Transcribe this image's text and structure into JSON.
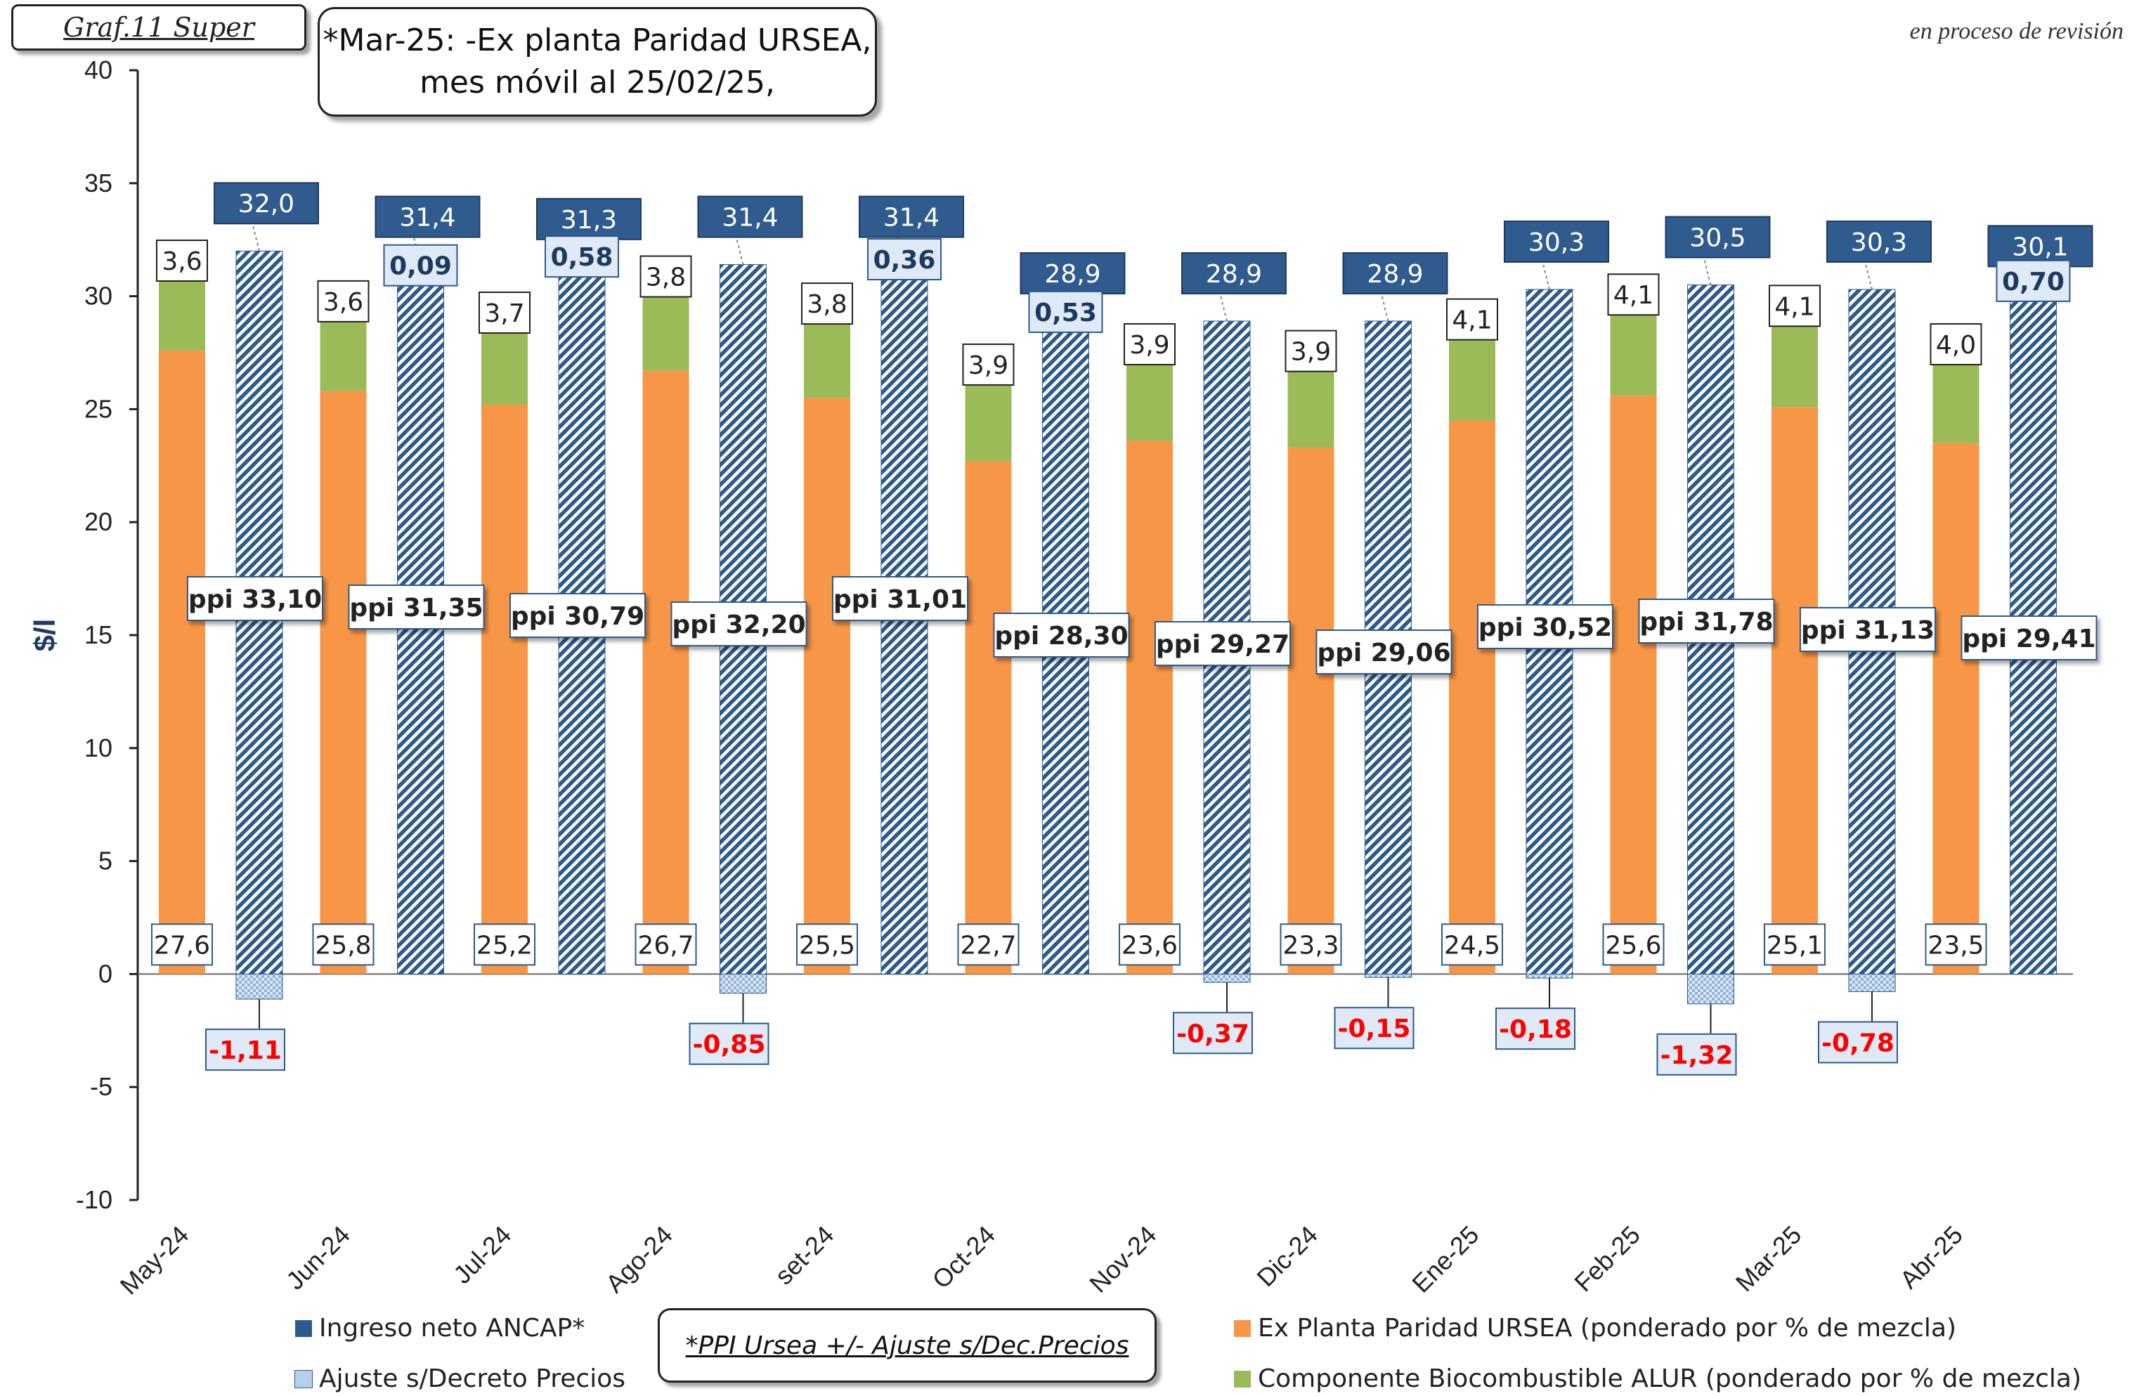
{
  "header": {
    "graf_label": "Graf.11  Super",
    "note_line1": "*Mar-25: -Ex planta Paridad URSEA,",
    "note_line2": "mes móvil al 25/02/25,",
    "revision": "en proceso de revisión"
  },
  "ppi_note": "*PPI Ursea +/- Ajuste s/Dec.Precios",
  "colors": {
    "ingreso": "#2e5a8e",
    "ingreso_label_bg": "#2f5b8f",
    "ex_planta": "#f79646",
    "alur": "#9bbb59",
    "ajuste": "#b7d0ea",
    "negative_text": "#ff0000",
    "axis": "#222222"
  },
  "legend": {
    "ingreso": "Ingreso neto ANCAP*",
    "ajuste": "Ajuste s/Decreto Precios",
    "ex_planta": "Ex Planta Paridad URSEA (ponderado por % de mezcla)",
    "alur": "Componente Biocombustible ALUR (ponderado por % de mezcla)"
  },
  "chart_data": {
    "type": "bar",
    "ylabel": "$/l",
    "ylim": [
      -10,
      40
    ],
    "yticks": [
      "-10",
      "-5",
      "0",
      "5",
      "10",
      "15",
      "20",
      "25",
      "30",
      "35",
      "40"
    ],
    "categories": [
      "May-24",
      "Jun-24",
      "Jul-24",
      "Ago-24",
      "set-24",
      "Oct-24",
      "Nov-24",
      "Dic-24",
      "Ene-25",
      "Feb-25",
      "Mar-25",
      "Abr-25"
    ],
    "series": [
      {
        "name": "Ex Planta Paridad URSEA (ponderado por % de mezcla)",
        "values": [
          27.6,
          25.8,
          25.2,
          26.7,
          25.5,
          22.7,
          23.6,
          23.3,
          24.5,
          25.6,
          25.1,
          23.5
        ],
        "labels": [
          "27,6",
          "25,8",
          "25,2",
          "26,7",
          "25,5",
          "22,7",
          "23,6",
          "23,3",
          "24,5",
          "25,6",
          "25,1",
          "23,5"
        ]
      },
      {
        "name": "Componente Biocombustible ALUR (ponderado por % de mezcla)",
        "values": [
          3.6,
          3.6,
          3.7,
          3.8,
          3.8,
          3.9,
          3.9,
          3.9,
          4.1,
          4.1,
          4.1,
          4.0
        ],
        "labels": [
          "3,6",
          "3,6",
          "3,7",
          "3,8",
          "3,8",
          "3,9",
          "3,9",
          "3,9",
          "4,1",
          "4,1",
          "4,1",
          "4,0"
        ]
      },
      {
        "name": "Ingreso neto ANCAP*",
        "values": [
          32.0,
          31.4,
          31.3,
          31.4,
          31.4,
          28.9,
          28.9,
          28.9,
          30.3,
          30.5,
          30.3,
          30.1
        ],
        "labels": [
          "32,0",
          "31,4",
          "31,3",
          "31,4",
          "31,4",
          "28,9",
          "28,9",
          "28,9",
          "30,3",
          "30,5",
          "30,3",
          "30,1"
        ],
        "ppi_labels": [
          "ppi 33,10",
          "ppi 31,35",
          "ppi 30,79",
          "ppi 32,20",
          "ppi 31,01",
          "ppi 28,30",
          "ppi 29,27",
          "ppi 29,06",
          "ppi 30,52",
          "ppi 31,78",
          "ppi 31,13",
          "ppi 29,41"
        ]
      },
      {
        "name": "Ajuste s/Decreto Precios",
        "values": [
          -1.11,
          0.09,
          0.58,
          -0.85,
          0.36,
          0.53,
          -0.37,
          -0.15,
          -0.18,
          -1.32,
          -0.78,
          0.7
        ],
        "labels": [
          "-1,11",
          "0,09",
          "0,58",
          "-0,85",
          "0,36",
          "0,53",
          "-0,37",
          "-0,15",
          "-0,18",
          "-1,32",
          "-0,78",
          "0,70"
        ]
      }
    ],
    "grid": false,
    "legend_position": "bottom"
  }
}
